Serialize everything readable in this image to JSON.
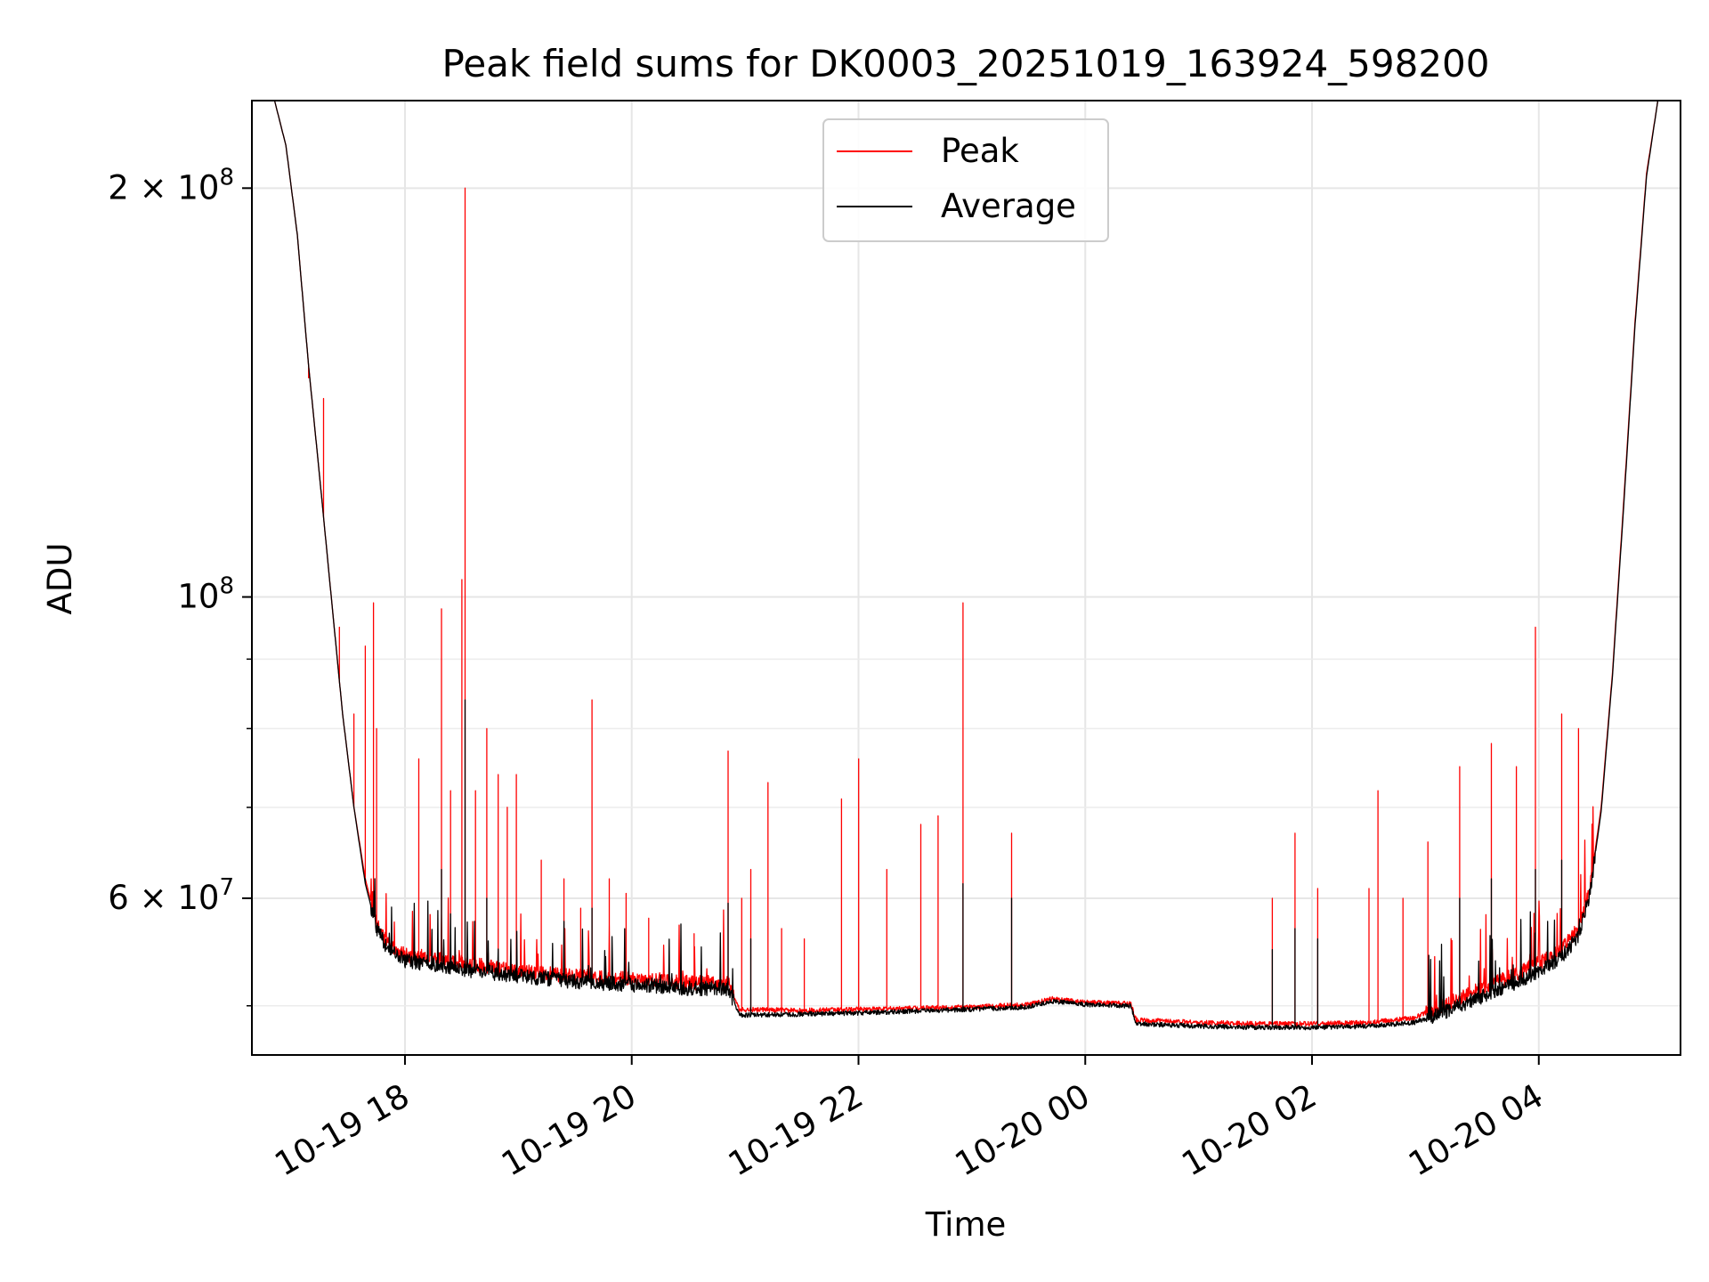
{
  "chart_data": {
    "type": "line",
    "title": "Peak field sums for DK0003_20251019_163924_598200",
    "xlabel": "Time",
    "ylabel": "ADU",
    "yscale": "log",
    "xlim_hours": [
      16.65,
      29.25
    ],
    "ylim": [
      46000000,
      232000000
    ],
    "grid": true,
    "legend_position": "upper center",
    "x_ticks": [
      {
        "hour": 18,
        "label": "10-19 18"
      },
      {
        "hour": 20,
        "label": "10-19 20"
      },
      {
        "hour": 22,
        "label": "10-19 22"
      },
      {
        "hour": 24,
        "label": "10-20 00"
      },
      {
        "hour": 26,
        "label": "10-20 02"
      },
      {
        "hour": 28,
        "label": "10-20 04"
      }
    ],
    "y_ticks": [
      {
        "value": 200000000,
        "base": "2 × 10",
        "exp": "8"
      },
      {
        "value": 100000000,
        "base": "10",
        "exp": "8"
      },
      {
        "value": 60000000,
        "base": "6 × 10",
        "exp": "7"
      }
    ],
    "y_minor_ticks": [
      50000000,
      70000000,
      80000000,
      90000000
    ],
    "series": [
      {
        "name": "Peak",
        "color": "#ff0000",
        "baseline": [
          [
            16.65,
            232000000
          ],
          [
            16.85,
            232000000
          ],
          [
            16.95,
            215000000
          ],
          [
            17.05,
            185000000
          ],
          [
            17.15,
            148000000
          ],
          [
            17.25,
            122000000
          ],
          [
            17.35,
            100000000
          ],
          [
            17.45,
            82000000
          ],
          [
            17.55,
            70000000
          ],
          [
            17.65,
            62000000
          ],
          [
            17.75,
            57500000
          ],
          [
            17.85,
            55500000
          ],
          [
            18.0,
            54500000
          ],
          [
            18.5,
            53800000
          ],
          [
            19.0,
            53000000
          ],
          [
            19.5,
            52600000
          ],
          [
            20.0,
            52300000
          ],
          [
            20.5,
            52000000
          ],
          [
            20.85,
            52000000
          ],
          [
            20.95,
            49700000
          ],
          [
            21.5,
            49600000
          ],
          [
            22.0,
            49700000
          ],
          [
            23.0,
            49900000
          ],
          [
            23.5,
            50100000
          ],
          [
            23.7,
            50600000
          ],
          [
            24.0,
            50300000
          ],
          [
            24.4,
            50200000
          ],
          [
            24.45,
            48800000
          ],
          [
            25.0,
            48600000
          ],
          [
            25.5,
            48500000
          ],
          [
            26.0,
            48500000
          ],
          [
            26.5,
            48600000
          ],
          [
            26.9,
            49000000
          ],
          [
            27.2,
            50200000
          ],
          [
            27.5,
            51500000
          ],
          [
            27.8,
            52800000
          ],
          [
            28.0,
            53800000
          ],
          [
            28.2,
            55000000
          ],
          [
            28.35,
            57000000
          ],
          [
            28.45,
            61000000
          ],
          [
            28.55,
            70000000
          ],
          [
            28.65,
            88000000
          ],
          [
            28.75,
            118000000
          ],
          [
            28.85,
            160000000
          ],
          [
            28.95,
            205000000
          ],
          [
            29.05,
            232000000
          ],
          [
            29.25,
            232000000
          ]
        ],
        "spikes": [
          [
            17.15,
            145000000
          ],
          [
            17.28,
            140000000
          ],
          [
            17.42,
            95000000
          ],
          [
            17.55,
            82000000
          ],
          [
            17.65,
            92000000
          ],
          [
            17.72,
            99000000
          ],
          [
            17.75,
            80000000
          ],
          [
            18.12,
            76000000
          ],
          [
            18.32,
            98000000
          ],
          [
            18.4,
            72000000
          ],
          [
            18.5,
            103000000
          ],
          [
            18.53,
            200000000
          ],
          [
            18.62,
            72000000
          ],
          [
            18.72,
            80000000
          ],
          [
            18.82,
            74000000
          ],
          [
            18.9,
            70000000
          ],
          [
            18.98,
            74000000
          ],
          [
            19.2,
            64000000
          ],
          [
            19.4,
            62000000
          ],
          [
            19.55,
            59000000
          ],
          [
            19.65,
            84000000
          ],
          [
            19.8,
            62000000
          ],
          [
            19.95,
            60500000
          ],
          [
            20.15,
            58000000
          ],
          [
            20.55,
            56500000
          ],
          [
            20.85,
            77000000
          ],
          [
            20.97,
            60000000
          ],
          [
            21.05,
            63000000
          ],
          [
            21.2,
            73000000
          ],
          [
            21.32,
            57000000
          ],
          [
            21.52,
            56000000
          ],
          [
            21.85,
            71000000
          ],
          [
            22.0,
            76000000
          ],
          [
            22.25,
            63000000
          ],
          [
            22.55,
            68000000
          ],
          [
            22.7,
            69000000
          ],
          [
            22.92,
            99000000
          ],
          [
            23.35,
            67000000
          ],
          [
            25.85,
            67000000
          ],
          [
            25.65,
            60000000
          ],
          [
            26.05,
            61000000
          ],
          [
            26.5,
            61000000
          ],
          [
            26.58,
            72000000
          ],
          [
            26.8,
            60000000
          ],
          [
            27.02,
            66000000
          ],
          [
            27.3,
            75000000
          ],
          [
            27.58,
            78000000
          ],
          [
            27.8,
            75000000
          ],
          [
            27.97,
            95000000
          ],
          [
            28.2,
            82000000
          ],
          [
            28.35,
            80000000
          ]
        ]
      },
      {
        "name": "Average",
        "color": "#000000",
        "baseline": [
          [
            16.65,
            232000000
          ],
          [
            16.85,
            232000000
          ],
          [
            16.95,
            215000000
          ],
          [
            17.05,
            185000000
          ],
          [
            17.15,
            148000000
          ],
          [
            17.25,
            122000000
          ],
          [
            17.35,
            100000000
          ],
          [
            17.45,
            82000000
          ],
          [
            17.55,
            70000000
          ],
          [
            17.65,
            61500000
          ],
          [
            17.75,
            57000000
          ],
          [
            17.85,
            55000000
          ],
          [
            18.0,
            54000000
          ],
          [
            18.5,
            53200000
          ],
          [
            19.0,
            52600000
          ],
          [
            19.5,
            52100000
          ],
          [
            20.0,
            51800000
          ],
          [
            20.5,
            51500000
          ],
          [
            20.85,
            51500000
          ],
          [
            20.95,
            49200000
          ],
          [
            21.5,
            49300000
          ],
          [
            22.0,
            49400000
          ],
          [
            23.0,
            49700000
          ],
          [
            23.5,
            49900000
          ],
          [
            23.7,
            50400000
          ],
          [
            24.0,
            50100000
          ],
          [
            24.4,
            50000000
          ],
          [
            24.45,
            48500000
          ],
          [
            25.0,
            48300000
          ],
          [
            25.5,
            48200000
          ],
          [
            26.0,
            48200000
          ],
          [
            26.5,
            48300000
          ],
          [
            26.9,
            48600000
          ],
          [
            27.2,
            49600000
          ],
          [
            27.5,
            50800000
          ],
          [
            27.8,
            52000000
          ],
          [
            28.0,
            53000000
          ],
          [
            28.2,
            54300000
          ],
          [
            28.35,
            56300000
          ],
          [
            28.45,
            60500000
          ],
          [
            28.55,
            69500000
          ],
          [
            28.65,
            87500000
          ],
          [
            28.75,
            117000000
          ],
          [
            28.85,
            159000000
          ],
          [
            28.95,
            204000000
          ],
          [
            29.05,
            232000000
          ],
          [
            29.25,
            232000000
          ]
        ],
        "spikes": [
          [
            17.65,
            62000000
          ],
          [
            18.32,
            63000000
          ],
          [
            18.53,
            84000000
          ],
          [
            18.72,
            60000000
          ],
          [
            19.65,
            59000000
          ],
          [
            20.85,
            59500000
          ],
          [
            21.05,
            56000000
          ],
          [
            22.92,
            61500000
          ],
          [
            23.35,
            60000000
          ],
          [
            25.65,
            55000000
          ],
          [
            25.85,
            57000000
          ],
          [
            26.05,
            56000000
          ],
          [
            27.3,
            60000000
          ],
          [
            27.58,
            62000000
          ],
          [
            27.97,
            63000000
          ],
          [
            28.2,
            64000000
          ]
        ]
      }
    ]
  }
}
